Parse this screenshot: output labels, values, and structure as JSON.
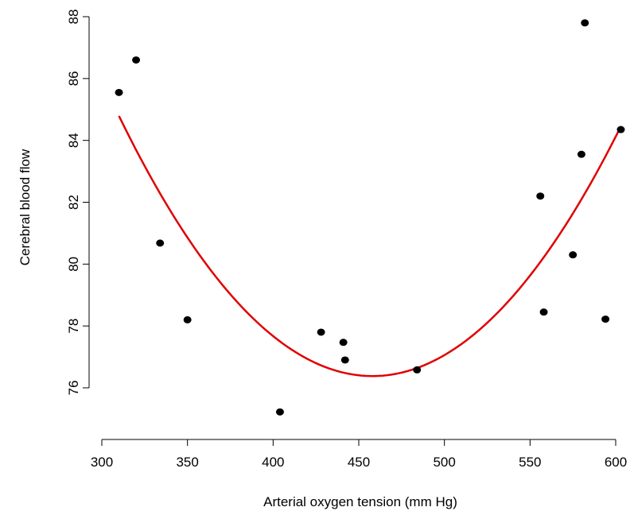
{
  "chart_data": {
    "type": "scatter",
    "title": "",
    "xlabel": "Arterial oxygen tension (mm Hg)",
    "ylabel": "Cerebral blood flow",
    "xlim": [
      300,
      605
    ],
    "ylim": [
      75.0,
      88.3
    ],
    "xticks": [
      300,
      350,
      400,
      450,
      500,
      550,
      600
    ],
    "yticks": [
      76,
      78,
      80,
      82,
      84,
      86,
      88
    ],
    "grid": false,
    "legend": "none",
    "point_color": "#000000",
    "curve_color": "#e00000",
    "points": [
      {
        "x": 310,
        "y": 85.55
      },
      {
        "x": 320,
        "y": 86.6
      },
      {
        "x": 334,
        "y": 80.68
      },
      {
        "x": 350,
        "y": 78.2
      },
      {
        "x": 404,
        "y": 75.22
      },
      {
        "x": 428,
        "y": 77.8
      },
      {
        "x": 441,
        "y": 77.47
      },
      {
        "x": 442,
        "y": 76.9
      },
      {
        "x": 484,
        "y": 76.58
      },
      {
        "x": 556,
        "y": 82.2
      },
      {
        "x": 558,
        "y": 78.45
      },
      {
        "x": 575,
        "y": 80.3
      },
      {
        "x": 580,
        "y": 83.55
      },
      {
        "x": 582,
        "y": 87.8
      },
      {
        "x": 594,
        "y": 78.22
      },
      {
        "x": 603,
        "y": 84.35
      }
    ],
    "fitted_curve": {
      "type": "quadratic",
      "vertex_x": 458,
      "vertex_y": 76.38,
      "a": 0.000384,
      "x_from": 310,
      "x_to": 603
    }
  }
}
